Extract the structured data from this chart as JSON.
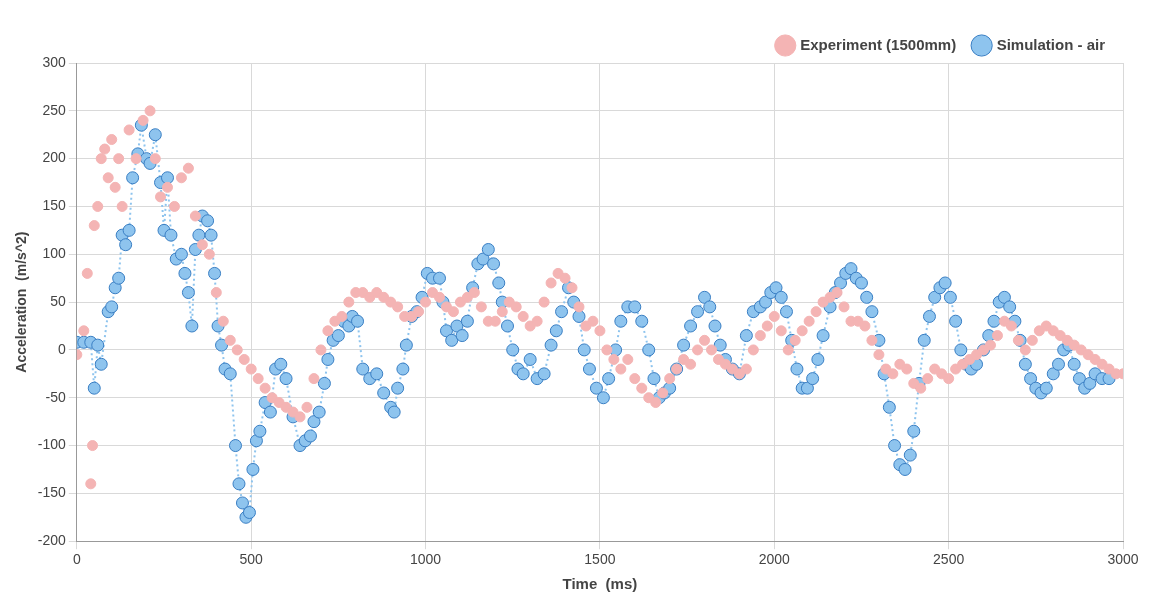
{
  "chart_data": {
    "type": "scatter",
    "xlabel": "Time  (ms)",
    "ylabel": "Acceleration  (m/s^2)",
    "xlim": [
      0,
      3000
    ],
    "ylim": [
      -200,
      300
    ],
    "xticks": [
      0,
      500,
      1000,
      1500,
      2000,
      2500,
      3000
    ],
    "yticks": [
      -200,
      -150,
      -100,
      -50,
      0,
      50,
      100,
      150,
      200,
      250,
      300
    ],
    "grid": true,
    "legend": "top right",
    "marker": "circle",
    "series": [
      {
        "name": "Experiment (1500mm)",
        "type": "scatter",
        "color": "#f4b4b4",
        "x": [
          0,
          20,
          30,
          40,
          45,
          50,
          60,
          70,
          80,
          90,
          100,
          110,
          120,
          130,
          150,
          170,
          190,
          210,
          225,
          240,
          260,
          280,
          300,
          320,
          340,
          360,
          380,
          400,
          420,
          440,
          460,
          480,
          500,
          520,
          540,
          560,
          580,
          600,
          620,
          640,
          660,
          680,
          700,
          720,
          740,
          760,
          780,
          800,
          820,
          840,
          860,
          880,
          900,
          920,
          940,
          960,
          980,
          1000,
          1020,
          1040,
          1060,
          1080,
          1100,
          1120,
          1140,
          1160,
          1180,
          1200,
          1220,
          1240,
          1260,
          1280,
          1300,
          1320,
          1340,
          1360,
          1380,
          1400,
          1420,
          1440,
          1460,
          1480,
          1500,
          1520,
          1540,
          1560,
          1580,
          1600,
          1620,
          1640,
          1660,
          1680,
          1700,
          1720,
          1740,
          1760,
          1780,
          1800,
          1820,
          1840,
          1860,
          1880,
          1900,
          1920,
          1940,
          1960,
          1980,
          2000,
          2020,
          2040,
          2060,
          2080,
          2100,
          2120,
          2140,
          2160,
          2180,
          2200,
          2220,
          2240,
          2260,
          2280,
          2300,
          2320,
          2340,
          2360,
          2380,
          2400,
          2420,
          2440,
          2460,
          2480,
          2500,
          2520,
          2540,
          2560,
          2580,
          2600,
          2620,
          2640,
          2660,
          2680,
          2700,
          2720,
          2740,
          2760,
          2780,
          2800,
          2820,
          2840,
          2860,
          2880,
          2900,
          2920,
          2940,
          2960,
          2980,
          3000
        ],
        "values": [
          -5,
          20,
          80,
          -140,
          -100,
          130,
          150,
          200,
          210,
          180,
          220,
          170,
          200,
          150,
          230,
          200,
          240,
          250,
          200,
          160,
          170,
          150,
          180,
          190,
          140,
          110,
          100,
          60,
          30,
          10,
          0,
          -10,
          -20,
          -30,
          -40,
          -50,
          -55,
          -60,
          -65,
          -70,
          -60,
          -30,
          0,
          20,
          30,
          35,
          50,
          60,
          60,
          55,
          60,
          55,
          50,
          45,
          35,
          35,
          40,
          50,
          60,
          55,
          45,
          40,
          50,
          55,
          60,
          45,
          30,
          30,
          40,
          50,
          45,
          35,
          25,
          30,
          50,
          70,
          80,
          75,
          65,
          45,
          25,
          30,
          20,
          0,
          -10,
          -20,
          -10,
          -30,
          -40,
          -50,
          -55,
          -45,
          -30,
          -20,
          -10,
          -15,
          0,
          10,
          0,
          -10,
          -15,
          -20,
          -25,
          -20,
          0,
          15,
          25,
          35,
          20,
          0,
          10,
          20,
          30,
          40,
          50,
          55,
          60,
          45,
          30,
          30,
          25,
          10,
          -5,
          -20,
          -25,
          -15,
          -20,
          -35,
          -40,
          -30,
          -20,
          -25,
          -30,
          -20,
          -15,
          -10,
          -5,
          0,
          5,
          15,
          30,
          25,
          10,
          0,
          10,
          20,
          25,
          20,
          15,
          10,
          5,
          0,
          -5,
          -10,
          -15,
          -20,
          -25,
          -25
        ]
      },
      {
        "name": "Simulation - air",
        "type": "line",
        "line_style": "dotted",
        "color": "#8ec4ee",
        "x": [
          0,
          20,
          40,
          50,
          60,
          70,
          90,
          100,
          110,
          120,
          130,
          140,
          150,
          160,
          175,
          185,
          200,
          210,
          225,
          240,
          250,
          260,
          270,
          285,
          300,
          310,
          320,
          330,
          340,
          350,
          360,
          375,
          385,
          395,
          405,
          415,
          425,
          440,
          455,
          465,
          475,
          485,
          495,
          505,
          515,
          525,
          540,
          555,
          570,
          585,
          600,
          620,
          640,
          655,
          670,
          680,
          695,
          710,
          720,
          735,
          750,
          765,
          780,
          790,
          805,
          820,
          840,
          860,
          880,
          900,
          910,
          920,
          935,
          945,
          960,
          975,
          990,
          1005,
          1020,
          1040,
          1050,
          1060,
          1075,
          1090,
          1105,
          1120,
          1135,
          1150,
          1165,
          1180,
          1195,
          1210,
          1220,
          1235,
          1250,
          1265,
          1280,
          1300,
          1320,
          1340,
          1360,
          1375,
          1390,
          1410,
          1425,
          1440,
          1455,
          1470,
          1490,
          1510,
          1525,
          1545,
          1560,
          1580,
          1600,
          1620,
          1640,
          1655,
          1670,
          1685,
          1700,
          1720,
          1740,
          1760,
          1780,
          1800,
          1815,
          1830,
          1845,
          1860,
          1880,
          1900,
          1920,
          1940,
          1960,
          1975,
          1990,
          2005,
          2020,
          2035,
          2050,
          2065,
          2080,
          2095,
          2110,
          2125,
          2140,
          2160,
          2175,
          2190,
          2205,
          2220,
          2235,
          2250,
          2265,
          2280,
          2300,
          2315,
          2330,
          2345,
          2360,
          2375,
          2390,
          2400,
          2415,
          2430,
          2445,
          2460,
          2475,
          2490,
          2505,
          2520,
          2535,
          2550,
          2565,
          2580,
          2600,
          2615,
          2630,
          2645,
          2660,
          2675,
          2690,
          2705,
          2720,
          2735,
          2750,
          2765,
          2780,
          2800,
          2815,
          2830,
          2845,
          2860,
          2875,
          2890,
          2905,
          2920,
          2940,
          2960
        ],
        "values": [
          8,
          8,
          8,
          -40,
          5,
          -15,
          40,
          45,
          65,
          75,
          120,
          110,
          125,
          180,
          205,
          235,
          200,
          195,
          225,
          175,
          125,
          180,
          120,
          95,
          100,
          80,
          60,
          25,
          105,
          120,
          140,
          135,
          120,
          80,
          25,
          5,
          -20,
          -25,
          -100,
          -140,
          -160,
          -175,
          -170,
          -125,
          -95,
          -85,
          -55,
          -65,
          -20,
          -15,
          -30,
          -70,
          -100,
          -95,
          -90,
          -75,
          -65,
          -35,
          -10,
          10,
          15,
          30,
          25,
          35,
          30,
          -20,
          -30,
          -25,
          -45,
          -60,
          -65,
          -40,
          -20,
          5,
          35,
          40,
          55,
          80,
          75,
          75,
          50,
          20,
          10,
          25,
          15,
          30,
          65,
          90,
          95,
          105,
          90,
          70,
          50,
          25,
          0,
          -20,
          -25,
          -10,
          -30,
          -25,
          5,
          20,
          40,
          65,
          50,
          35,
          0,
          -20,
          -40,
          -50,
          -30,
          0,
          30,
          45,
          45,
          30,
          0,
          -30,
          -50,
          -45,
          -40,
          -20,
          5,
          25,
          40,
          55,
          45,
          25,
          5,
          -10,
          -20,
          -25,
          15,
          40,
          45,
          50,
          60,
          65,
          55,
          40,
          10,
          -20,
          -40,
          -40,
          -30,
          -10,
          15,
          45,
          60,
          70,
          80,
          85,
          75,
          70,
          55,
          40,
          10,
          -25,
          -60,
          -100,
          -120,
          -125,
          -110,
          -85,
          -35,
          10,
          35,
          55,
          65,
          70,
          55,
          30,
          0,
          -15,
          -20,
          -15,
          0,
          15,
          30,
          50,
          55,
          45,
          30,
          10,
          -15,
          -30,
          -40,
          -45,
          -40,
          -25,
          -15,
          0,
          5,
          -15,
          -30,
          -40,
          -35,
          -25,
          -30,
          -30
        ]
      }
    ]
  }
}
